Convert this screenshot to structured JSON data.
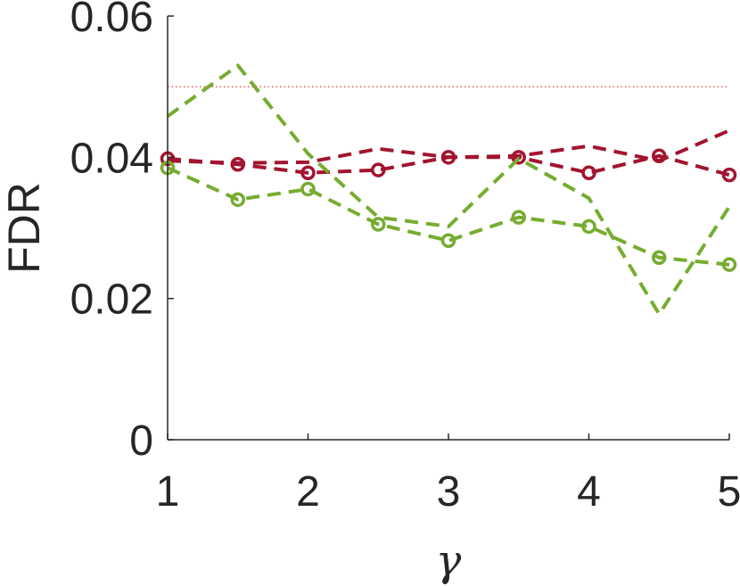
{
  "chart_data": {
    "type": "line",
    "xlabel": "γ",
    "ylabel": "FDR",
    "xlim": [
      1,
      5
    ],
    "ylim": [
      0,
      0.06
    ],
    "xticks": [
      1,
      2,
      3,
      4,
      5
    ],
    "yticks": [
      0,
      0.02,
      0.04,
      0.06
    ],
    "ytick_labels": [
      "0",
      "0.02",
      "0.04",
      "0.06"
    ],
    "xtick_labels": [
      "1",
      "2",
      "3",
      "4",
      "5"
    ],
    "reference_line": {
      "y": 0.05,
      "color": "#d62728",
      "style": "dotted"
    },
    "grid": false,
    "series": [
      {
        "color": "#a2142f",
        "style": "dashed",
        "marker": "none",
        "x": [
          1,
          1.5,
          2,
          2.5,
          3,
          3.5,
          4,
          4.5,
          5
        ],
        "y": [
          0.0395,
          0.0392,
          0.0393,
          0.0412,
          0.04,
          0.0402,
          0.0416,
          0.0395,
          0.0438
        ]
      },
      {
        "color": "#a2142f",
        "style": "dashed",
        "marker": "circle",
        "x": [
          1,
          1.5,
          2,
          2.5,
          3,
          3.5,
          4,
          4.5,
          5
        ],
        "y": [
          0.0398,
          0.039,
          0.0378,
          0.0382,
          0.04,
          0.04,
          0.0378,
          0.0402,
          0.0375
        ]
      },
      {
        "color": "#77ac30",
        "style": "dashed",
        "marker": "none",
        "x": [
          1,
          1.5,
          2,
          2.5,
          3,
          3.5,
          4,
          4.5,
          5
        ],
        "y": [
          0.0458,
          0.053,
          0.0405,
          0.0315,
          0.0302,
          0.0398,
          0.0342,
          0.0178,
          0.033
        ]
      },
      {
        "color": "#77ac30",
        "style": "dashed",
        "marker": "circle",
        "x": [
          1,
          1.5,
          2,
          2.5,
          3,
          3.5,
          4,
          4.5,
          5
        ],
        "y": [
          0.0385,
          0.034,
          0.0355,
          0.0305,
          0.0282,
          0.0315,
          0.0302,
          0.0258,
          0.0248
        ]
      }
    ]
  }
}
